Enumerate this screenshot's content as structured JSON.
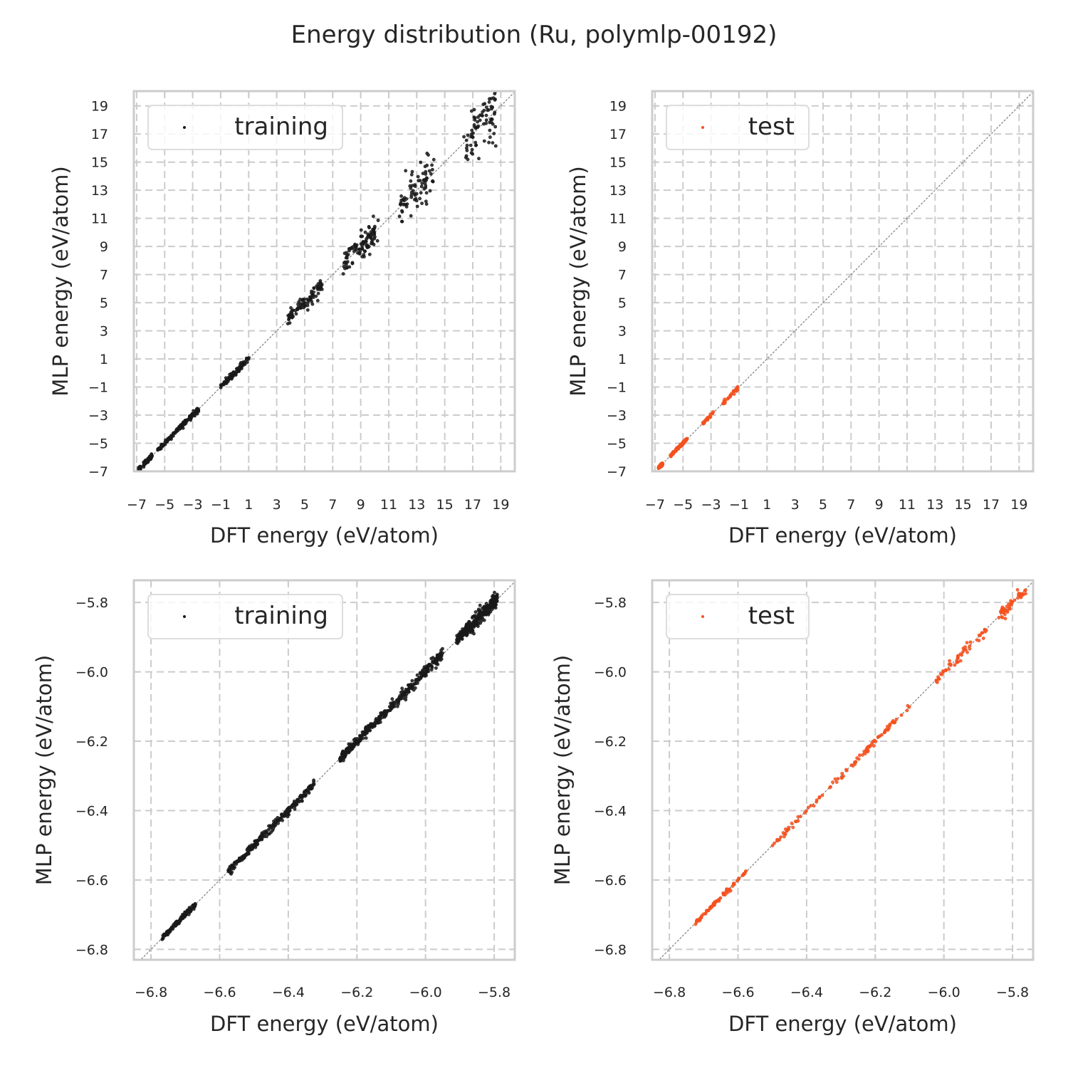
{
  "figure": {
    "title": "Energy distribution (Ru, polymlp-00192)"
  },
  "colors": {
    "training": "#1a1a1a",
    "test": "#f4511e",
    "grid": "#cccccc",
    "frame": "#cccccc",
    "diagonal": "#808080"
  },
  "chart_data": [
    {
      "type": "scatter",
      "panel": "top-left",
      "title": "",
      "xlabel": "DFT energy (eV/atom)",
      "ylabel": "MLP energy (eV/atom)",
      "xlim": [
        -7.2,
        20.0
      ],
      "ylim": [
        -7.0,
        20.05
      ],
      "xticks": [
        -7,
        -5,
        -3,
        -1,
        1,
        3,
        5,
        7,
        9,
        11,
        13,
        15,
        17,
        19
      ],
      "yticks": [
        -7,
        -5,
        -3,
        -1,
        1,
        3,
        5,
        7,
        9,
        11,
        13,
        15,
        17,
        19
      ],
      "xtick_labels": [
        "−7",
        "−5",
        "−3",
        "−1",
        "1",
        "3",
        "5",
        "7",
        "9",
        "11",
        "13",
        "15",
        "17",
        "19"
      ],
      "ytick_labels": [
        "−7",
        "−5",
        "−3",
        "−1",
        "1",
        "3",
        "5",
        "7",
        "9",
        "11",
        "13",
        "15",
        "17",
        "19"
      ],
      "grid": true,
      "diagonal": true,
      "legend": {
        "position": "top-left",
        "entries": [
          "training"
        ]
      },
      "series": [
        {
          "name": "training",
          "color_key": "training",
          "range": [
            -6.85,
            19.9
          ],
          "spread": [
            [
              -7,
              0.05
            ],
            [
              3,
              0.15
            ],
            [
              9,
              0.45
            ],
            [
              15,
              0.9
            ],
            [
              20,
              1.3
            ]
          ],
          "clusters": [
            [
              -6.8,
              0.15,
              160
            ],
            [
              -6.2,
              0.6,
              120
            ],
            [
              -4,
              3,
              140
            ],
            [
              0,
              2,
              90
            ],
            [
              5,
              2.5,
              90
            ],
            [
              9,
              2.5,
              100
            ],
            [
              13,
              2.5,
              80
            ],
            [
              17.5,
              2.3,
              80
            ]
          ]
        }
      ]
    },
    {
      "type": "scatter",
      "panel": "top-right",
      "title": "",
      "xlabel": "DFT energy (eV/atom)",
      "ylabel": "MLP energy (eV/atom)",
      "xlim": [
        -7.2,
        20.0
      ],
      "ylim": [
        -7.0,
        20.05
      ],
      "xticks": [
        -7,
        -5,
        -3,
        -1,
        1,
        3,
        5,
        7,
        9,
        11,
        13,
        15,
        17,
        19
      ],
      "yticks": [
        -7,
        -5,
        -3,
        -1,
        1,
        3,
        5,
        7,
        9,
        11,
        13,
        15,
        17,
        19
      ],
      "xtick_labels": [
        "−7",
        "−5",
        "−3",
        "−1",
        "1",
        "3",
        "5",
        "7",
        "9",
        "11",
        "13",
        "15",
        "17",
        "19"
      ],
      "ytick_labels": [
        "−7",
        "−5",
        "−3",
        "−1",
        "1",
        "3",
        "5",
        "7",
        "9",
        "11",
        "13",
        "15",
        "17",
        "19"
      ],
      "grid": true,
      "diagonal": true,
      "legend": {
        "position": "top-left",
        "entries": [
          "test"
        ]
      },
      "series": [
        {
          "name": "test",
          "color_key": "test",
          "range": [
            -6.85,
            -0.4
          ],
          "spread": [
            [
              -7,
              0.04
            ],
            [
              -1,
              0.08
            ]
          ],
          "clusters": [
            [
              -6.6,
              0.3,
              120
            ],
            [
              -5.3,
              1.2,
              90
            ],
            [
              -3.2,
              0.8,
              25
            ],
            [
              -1.6,
              1.1,
              30
            ]
          ]
        }
      ]
    },
    {
      "type": "scatter",
      "panel": "bottom-left",
      "title": "",
      "xlabel": "DFT energy (eV/atom)",
      "ylabel": "MLP energy (eV/atom)",
      "xlim": [
        -6.85,
        -5.74
      ],
      "ylim": [
        -6.83,
        -5.736
      ],
      "xticks": [
        -6.8,
        -6.6,
        -6.4,
        -6.2,
        -6.0,
        -5.8
      ],
      "yticks": [
        -6.8,
        -6.6,
        -6.4,
        -6.2,
        -6.0,
        -5.8
      ],
      "xtick_labels": [
        "−6.8",
        "−6.6",
        "−6.4",
        "−6.2",
        "−6.0",
        "−5.8"
      ],
      "ytick_labels": [
        "−6.8",
        "−6.6",
        "−6.4",
        "−6.2",
        "−6.0",
        "−5.8"
      ],
      "grid": true,
      "diagonal": true,
      "legend": {
        "position": "top-left",
        "entries": [
          "training"
        ]
      },
      "series": [
        {
          "name": "training",
          "color_key": "training",
          "range": [
            -6.78,
            -5.74
          ],
          "spread": [
            [
              -6.8,
              0.003
            ],
            [
              -6.4,
              0.006
            ],
            [
              -6.0,
              0.008
            ],
            [
              -5.74,
              0.012
            ]
          ],
          "clusters": [
            [
              -6.72,
              0.1,
              120
            ],
            [
              -6.45,
              0.25,
              250
            ],
            [
              -6.1,
              0.3,
              350
            ],
            [
              -5.85,
              0.12,
              300
            ]
          ]
        }
      ]
    },
    {
      "type": "scatter",
      "panel": "bottom-right",
      "title": "",
      "xlabel": "DFT energy (eV/atom)",
      "ylabel": "MLP energy (eV/atom)",
      "xlim": [
        -6.85,
        -5.74
      ],
      "ylim": [
        -6.83,
        -5.736
      ],
      "xticks": [
        -6.8,
        -6.6,
        -6.4,
        -6.2,
        -6.0,
        -5.8
      ],
      "yticks": [
        -6.8,
        -6.6,
        -6.4,
        -6.2,
        -6.0,
        -5.8
      ],
      "xtick_labels": [
        "−6.8",
        "−6.6",
        "−6.4",
        "−6.2",
        "−6.0",
        "−5.8"
      ],
      "ytick_labels": [
        "−6.8",
        "−6.6",
        "−6.4",
        "−6.2",
        "−6.0",
        "−5.8"
      ],
      "grid": true,
      "diagonal": true,
      "legend": {
        "position": "top-left",
        "entries": [
          "test"
        ]
      },
      "series": [
        {
          "name": "test",
          "color_key": "test",
          "range": [
            -6.8,
            -5.745
          ],
          "spread": [
            [
              -6.8,
              0.002
            ],
            [
              -6.2,
              0.005
            ],
            [
              -5.75,
              0.008
            ]
          ],
          "clusters": [
            [
              -6.65,
              0.15,
              70
            ],
            [
              -6.4,
              0.2,
              40
            ],
            [
              -6.2,
              0.2,
              60
            ],
            [
              -5.95,
              0.15,
              50
            ],
            [
              -5.8,
              0.08,
              45
            ]
          ]
        }
      ]
    }
  ]
}
